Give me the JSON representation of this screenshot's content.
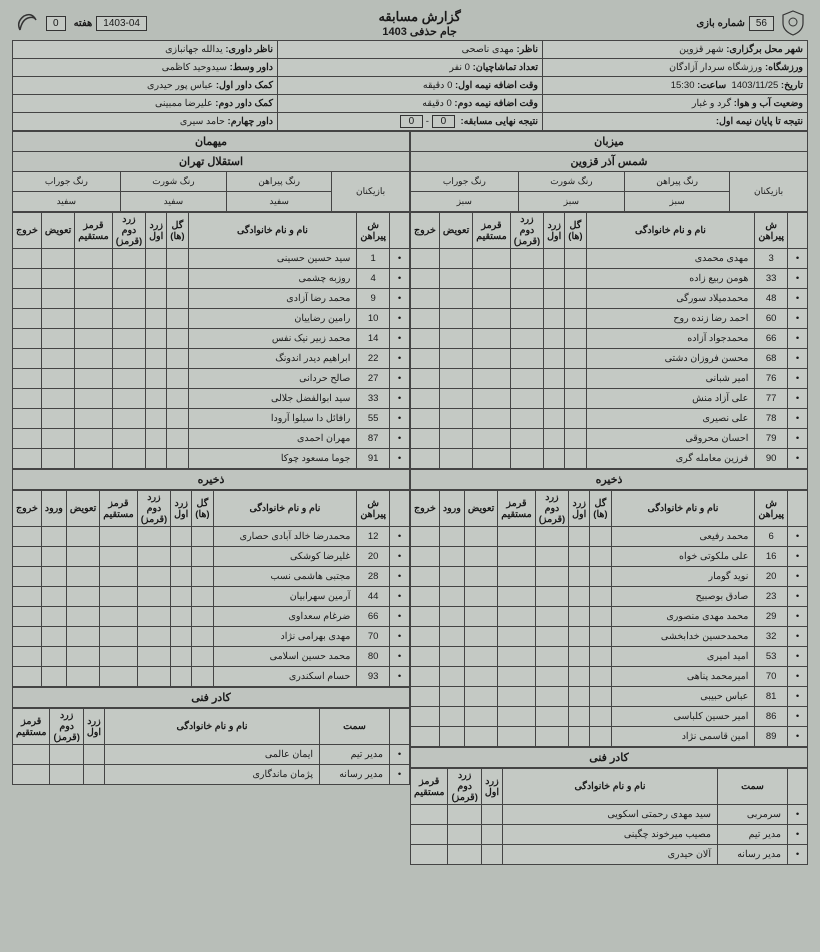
{
  "header": {
    "title": "گزارش مسابقه",
    "subtitle": "جام حذفی 1403",
    "season": "1403-04",
    "week_label": "هفته",
    "week": "0",
    "game_no_label": "شماره بازی",
    "game_no": "56"
  },
  "info": {
    "host_city_l": "شهر محل برگزاری:",
    "host_city": "شهر قزوین",
    "supervisor_l": "ناظر:",
    "supervisor": "مهدی ناصحی",
    "ref_supervisor_l": "ناظر داوری:",
    "ref_supervisor": "یدالله جهانبازی",
    "stadium_l": "ورزشگاه:",
    "stadium": "ورزشگاه سردار آزادگان",
    "attendance_l": "تعداد تماشاچیان:",
    "attendance": "0",
    "attendance_u": "نفر",
    "referee_l": "داور وسط:",
    "referee": "سیدوحید کاظمی",
    "date_l": "تاریخ:",
    "date": "1403/11/25",
    "time_l": "ساعت:",
    "time": "15:30",
    "extra1_l": "وقت اضافه نیمه اول:",
    "extra1": "0",
    "min": "دقیقه",
    "ar1_l": "کمک داور اول:",
    "ar1": "عباس پور حیدری",
    "weather_l": "وضعیت آب و هوا:",
    "weather": "گرد و غبار",
    "extra2_l": "وقت اضافه نیمه دوم:",
    "extra2": "0",
    "ar2_l": "کمک داور دوم:",
    "ar2": "علیرضا ممبینی",
    "ht_l": "نتیجه تا پایان نیمه اول:",
    "ft_l": "نتیجه نهایی مسابقه:",
    "ft1": "0",
    "ft2": "0",
    "r4_l": "داور چهارم:",
    "r4": "حامد سیری"
  },
  "labels": {
    "host": "میزبان",
    "guest": "میهمان",
    "players": "بازیکنان",
    "shirt_color": "رنگ پیراهن",
    "short_color": "رنگ شورت",
    "sock_color": "رنگ جوراب",
    "green": "سبز",
    "white": "سفید",
    "num": "ش پیراهن",
    "name": "نام و نام خانوادگی",
    "goals": "گل (ها)",
    "y1": "زرد اول",
    "y2": "زرد دوم (قرمز)",
    "red": "قرمز مستقیم",
    "sub": "تعویض",
    "in": "ورود",
    "out": "خروج",
    "subs": "ذخیره",
    "staff": "کادر فنی",
    "role": "سمت",
    "head_coach": "سرمربی",
    "manager": "مدیر تیم",
    "media": "مدیر رسانه"
  },
  "home": {
    "name": "شمس آذر قزوین",
    "shirt": "سبز",
    "short": "سبز",
    "sock": "سبز",
    "players": [
      {
        "n": "3",
        "name": "مهدی محمدی"
      },
      {
        "n": "33",
        "name": "هومن ربیع زاده"
      },
      {
        "n": "48",
        "name": "محمدمیلاد سورگی"
      },
      {
        "n": "60",
        "name": "احمد رضا زنده روح"
      },
      {
        "n": "66",
        "name": "محمدجواد آزاده"
      },
      {
        "n": "68",
        "name": "محسن فروزان دشتی"
      },
      {
        "n": "76",
        "name": "امیر شبانی"
      },
      {
        "n": "77",
        "name": "علی آزاد منش"
      },
      {
        "n": "78",
        "name": "علی نصیری"
      },
      {
        "n": "79",
        "name": "احسان محروقی"
      },
      {
        "n": "90",
        "name": "فرزین معامله گری"
      }
    ],
    "subs": [
      {
        "n": "6",
        "name": "محمد رفیعی"
      },
      {
        "n": "16",
        "name": "علی ملکوتی خواه"
      },
      {
        "n": "20",
        "name": "نوید گومار"
      },
      {
        "n": "23",
        "name": "صادق بوصبیح"
      },
      {
        "n": "29",
        "name": "محمد مهدی منصوری"
      },
      {
        "n": "32",
        "name": "محمدحسین خدابخشی"
      },
      {
        "n": "53",
        "name": "امید امیری"
      },
      {
        "n": "70",
        "name": "امیرمحمد پناهی"
      },
      {
        "n": "81",
        "name": "عباس حبیبی"
      },
      {
        "n": "86",
        "name": "امیر حسین کلباسی"
      },
      {
        "n": "89",
        "name": "امین قاسمی نژاد"
      }
    ],
    "staff": [
      {
        "role": "سرمربی",
        "name": "سید مهدی رحمتی اسکویی"
      },
      {
        "role": "مدیر تیم",
        "name": "مصیب میرخوند چگینی"
      },
      {
        "role": "مدیر رسانه",
        "name": "آلان حیدری"
      }
    ]
  },
  "away": {
    "name": "استقلال تهران",
    "shirt": "سفید",
    "short": "سفید",
    "sock": "سفید",
    "players": [
      {
        "n": "1",
        "name": "سید حسین حسینی"
      },
      {
        "n": "4",
        "name": "روزبه چشمی"
      },
      {
        "n": "9",
        "name": "محمد رضا آزادی"
      },
      {
        "n": "10",
        "name": "رامین رضاییان"
      },
      {
        "n": "14",
        "name": "محمد زبیر نیک نفس"
      },
      {
        "n": "22",
        "name": "ابراهیم دیدر اندونگ"
      },
      {
        "n": "27",
        "name": "صالح حردانی"
      },
      {
        "n": "33",
        "name": "سید ابوالفضل جلالی"
      },
      {
        "n": "55",
        "name": "رافائل دا سیلوا آرودا"
      },
      {
        "n": "87",
        "name": "مهران احمدی"
      },
      {
        "n": "91",
        "name": "جوما مسعود چوکا"
      }
    ],
    "subs": [
      {
        "n": "12",
        "name": "محمدرضا خالد آبادی حصاری"
      },
      {
        "n": "20",
        "name": "غلیرضا کوشکی"
      },
      {
        "n": "28",
        "name": "مجتبی هاشمی نسب"
      },
      {
        "n": "44",
        "name": "آرمین سهرابیان"
      },
      {
        "n": "66",
        "name": "ضرغام سعداوی"
      },
      {
        "n": "70",
        "name": "مهدی بهرامی نژاد"
      },
      {
        "n": "80",
        "name": "محمد حسین اسلامی"
      },
      {
        "n": "93",
        "name": "حسام اسکندری"
      }
    ],
    "staff": [
      {
        "role": "مدیر تیم",
        "name": "ایمان عالمی"
      },
      {
        "role": "مدیر رسانه",
        "name": "پژمان ماندگاری"
      }
    ]
  },
  "colors": {
    "bg": "#b8beb8",
    "cell": "#c4c9c4",
    "border": "#444444",
    "text": "#1a1a1a"
  }
}
